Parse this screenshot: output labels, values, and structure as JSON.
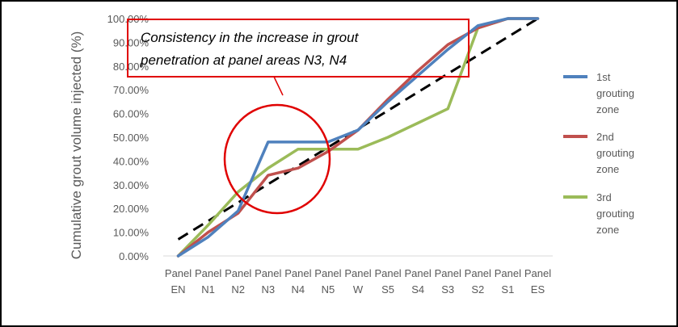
{
  "chart_data": {
    "type": "line",
    "title": "",
    "ylabel": "Cumulative grout volume injected (%)",
    "xlabel": "",
    "categories": [
      "Panel EN",
      "Panel N1",
      "Panel N2",
      "Panel N3",
      "Panel N4",
      "Panel N5",
      "Panel W",
      "Panel S5",
      "Panel S4",
      "Panel S3",
      "Panel S2",
      "Panel S1",
      "Panel ES"
    ],
    "y_tick_labels": [
      "0.00%",
      "10.00%",
      "20.00%",
      "30.00%",
      "40.00%",
      "50.00%",
      "60.00%",
      "70.00%",
      "80.00%",
      "90.00%",
      "100.00%"
    ],
    "ylim": [
      0,
      100
    ],
    "grid": false,
    "legend_position": "right",
    "series": [
      {
        "name": "1st grouting zone",
        "color": "#4f81bd",
        "values": [
          0,
          8,
          19,
          48,
          48,
          48,
          53,
          65,
          76,
          87,
          97,
          100,
          100
        ]
      },
      {
        "name": "2nd grouting zone",
        "color": "#c0504d",
        "values": [
          0,
          10,
          18,
          34,
          37,
          44,
          53,
          66,
          78,
          89,
          96,
          100,
          100
        ]
      },
      {
        "name": "3rd grouting zone",
        "color": "#9bbb59",
        "values": [
          0,
          13,
          27,
          37,
          45,
          45,
          45,
          50,
          56,
          62,
          96,
          100,
          100
        ]
      }
    ],
    "trendline": {
      "style": "dashed",
      "color": "#000000",
      "start_value": 7,
      "end_value": 100
    },
    "annotation": {
      "text_line1": "Consistency in the increase in grout",
      "text_line2": "penetration at panel areas N3, N4",
      "box_color": "#e00000",
      "circle_color": "#e00000"
    }
  }
}
